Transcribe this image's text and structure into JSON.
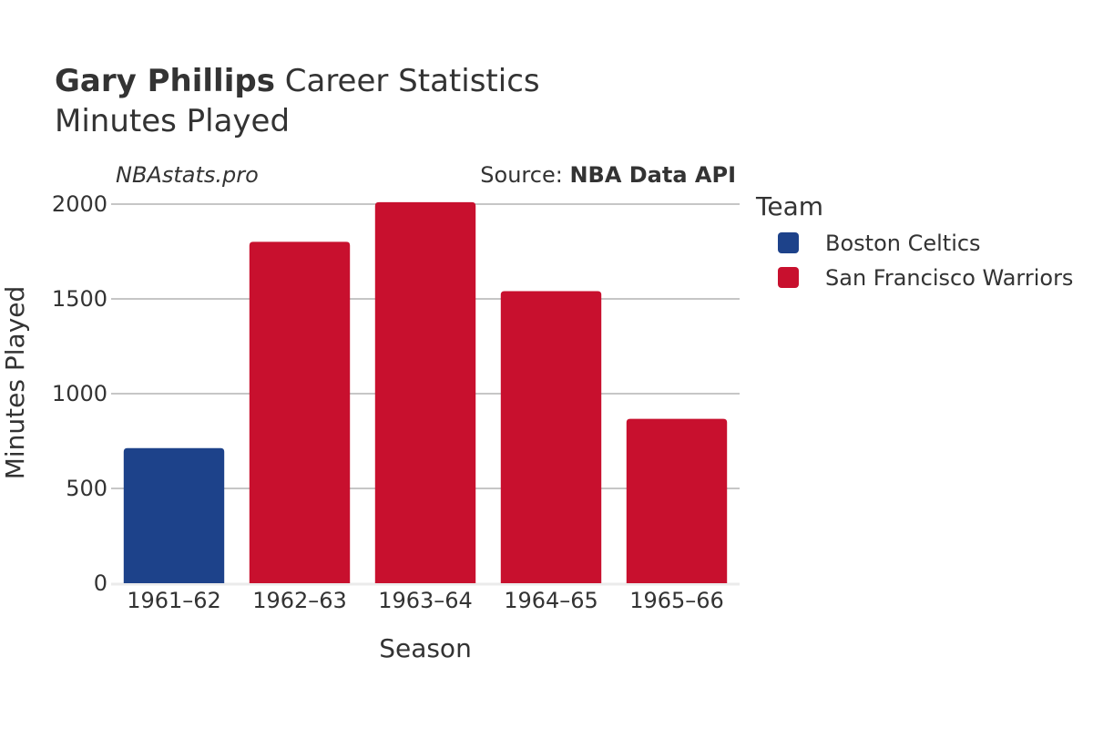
{
  "header": {
    "title_bold": "Gary Phillips",
    "title_rest": " Career Statistics",
    "subtitle": "Minutes Played"
  },
  "attribution": {
    "site": "NBAstats.pro",
    "source_prefix": "Source: ",
    "source_name": "NBA Data API"
  },
  "legend": {
    "title": "Team",
    "items": [
      {
        "label": "Boston Celtics",
        "color": "#1d428a"
      },
      {
        "label": "San Francisco Warriors",
        "color": "#c8102e"
      }
    ]
  },
  "chart_data": {
    "type": "bar",
    "title": "Gary Phillips Career Statistics",
    "subtitle": "Minutes Played",
    "xlabel": "Season",
    "ylabel": "Minutes Played",
    "categories": [
      "1961–62",
      "1962–63",
      "1963–64",
      "1964–65",
      "1965–66"
    ],
    "values": [
      713,
      1801,
      2010,
      1541,
      867
    ],
    "teams": [
      "Boston Celtics",
      "San Francisco Warriors",
      "San Francisco Warriors",
      "San Francisco Warriors",
      "San Francisco Warriors"
    ],
    "team_colors": {
      "Boston Celtics": "#1d428a",
      "San Francisco Warriors": "#c8102e"
    },
    "ylim": [
      0,
      2000
    ],
    "yticks": [
      0,
      500,
      1000,
      1500,
      2000
    ],
    "ytick_labels": [
      "0",
      "500",
      "1000",
      "1500",
      "2000"
    ],
    "grid": true,
    "legend_position": "right"
  }
}
